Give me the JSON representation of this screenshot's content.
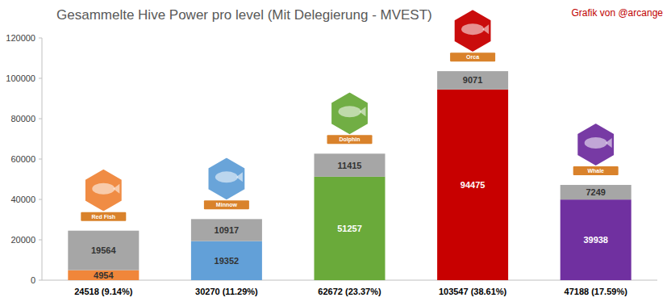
{
  "chart_data": {
    "type": "bar",
    "title": "Gesammelte Hive Power pro level (Mit Delegierung - MVEST)",
    "subtitle": "Grafik von @arcange",
    "categories": [
      "24518 (9.14%)",
      "30270 (11.29%)",
      "62672 (23.37%)",
      "103547 (38.61%)",
      "47188 (17.59%)"
    ],
    "annotations": [
      "Red Fish",
      "Minnow",
      "Dolphin",
      "Orca",
      "Whale"
    ],
    "series": [
      {
        "values": [
          4954,
          19352,
          51257,
          94475,
          39938
        ],
        "colors": [
          "#f0863a",
          "#62a0d8",
          "#6aaa3a",
          "#c80000",
          "#7030a0"
        ]
      },
      {
        "values": [
          19564,
          10917,
          11415,
          9071,
          7249
        ],
        "color": "#a6a6a6"
      }
    ],
    "stacked": true,
    "data_labels": true,
    "grid": false,
    "ylim": [
      0,
      120000
    ],
    "yticks": [
      0,
      20000,
      40000,
      60000,
      80000,
      100000,
      120000
    ]
  }
}
